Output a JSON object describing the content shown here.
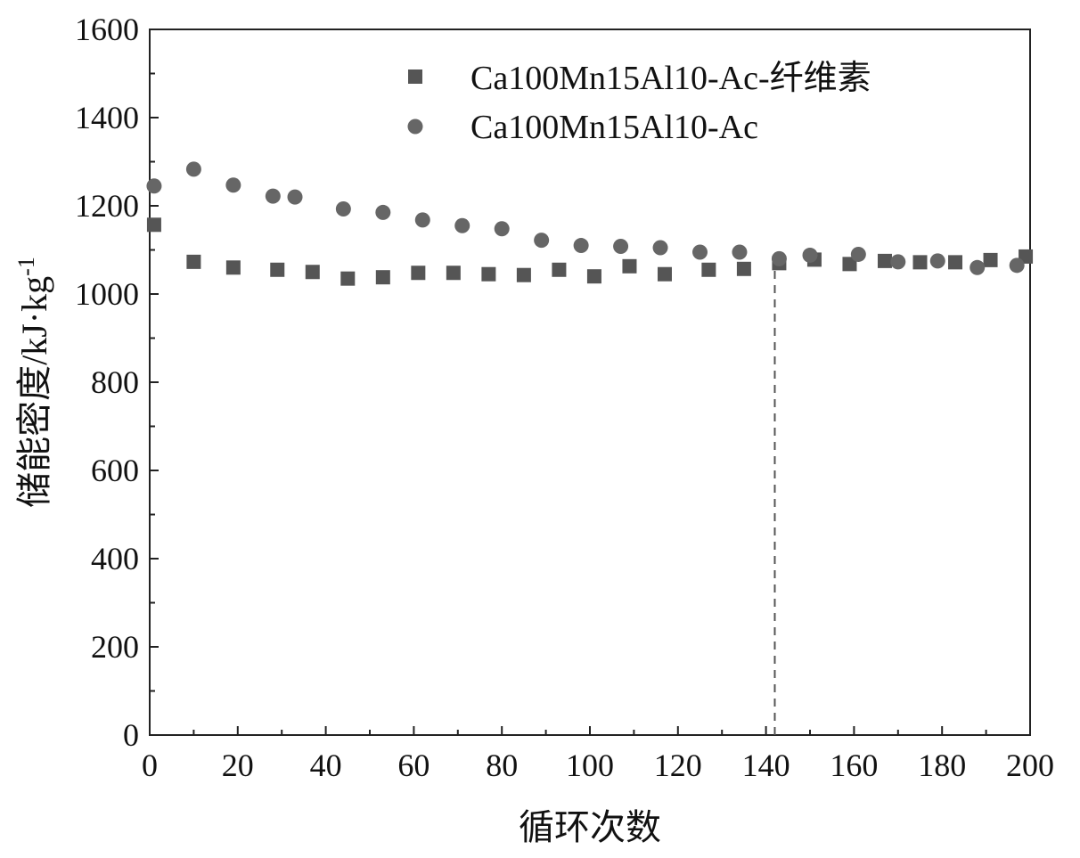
{
  "chart_data": {
    "type": "scatter",
    "title": "",
    "xlabel": "循环次数",
    "ylabel": "储能密度/kJ·kg",
    "ylabel_superscript": "-1",
    "xlim": [
      0,
      200
    ],
    "ylim": [
      0,
      1600
    ],
    "x_ticks": [
      "0",
      "20",
      "40",
      "60",
      "80",
      "100",
      "120",
      "140",
      "160",
      "180",
      "200"
    ],
    "y_ticks": [
      "0",
      "200",
      "400",
      "600",
      "800",
      "1000",
      "1200",
      "1400",
      "1600"
    ],
    "grid": false,
    "legend_position": "top-right",
    "reference_line": {
      "x": 142,
      "y_top": 1070,
      "style": "dashed"
    },
    "series": [
      {
        "name": "Ca100Mn15Al10-Ac-纤维素",
        "marker": "square",
        "color": "#555555",
        "x": [
          1,
          10,
          19,
          29,
          37,
          45,
          53,
          61,
          69,
          77,
          85,
          93,
          101,
          109,
          117,
          127,
          135,
          143,
          151,
          159,
          167,
          175,
          183,
          191,
          199
        ],
        "y": [
          1157,
          1073,
          1060,
          1055,
          1050,
          1035,
          1038,
          1048,
          1048,
          1045,
          1043,
          1055,
          1040,
          1063,
          1045,
          1055,
          1057,
          1070,
          1078,
          1068,
          1075,
          1072,
          1072,
          1077,
          1085
        ]
      },
      {
        "name": "Ca100Mn15Al10-Ac",
        "marker": "circle",
        "color": "#666666",
        "x": [
          1,
          10,
          19,
          28,
          33,
          44,
          53,
          62,
          71,
          80,
          89,
          98,
          107,
          116,
          125,
          134,
          143,
          150,
          161,
          170,
          179,
          188,
          197
        ],
        "y": [
          1245,
          1283,
          1247,
          1222,
          1220,
          1193,
          1185,
          1168,
          1155,
          1148,
          1122,
          1110,
          1108,
          1105,
          1095,
          1095,
          1080,
          1088,
          1090,
          1073,
          1075,
          1060,
          1065
        ]
      }
    ]
  }
}
